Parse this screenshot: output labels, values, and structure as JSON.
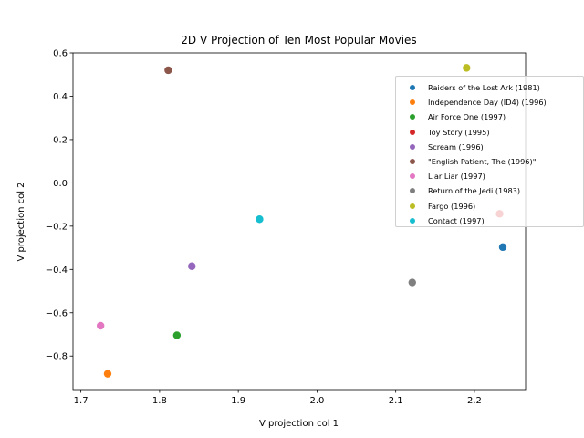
{
  "chart_data": {
    "type": "scatter",
    "title": "2D V Projection of Ten Most Popular Movies",
    "xlabel": "V projection col 1",
    "ylabel": "V projection col 2",
    "xlim": [
      1.69,
      2.265
    ],
    "ylim": [
      -0.955,
      0.6
    ],
    "xticks": [
      "1.7",
      "1.8",
      "1.9",
      "2.0",
      "2.1",
      "2.2"
    ],
    "yticks": [
      "0.6",
      "0.4",
      "0.2",
      "0.0",
      "−0.2",
      "−0.4",
      "−0.6",
      "−0.8"
    ],
    "legend_position": "upper-right",
    "grid": false,
    "series": [
      {
        "name": "Raiders of the Lost Ark (1981)",
        "x": 2.236,
        "y": -0.297,
        "color": "#1f77b4"
      },
      {
        "name": "Independence Day (ID4) (1996)",
        "x": 1.734,
        "y": -0.882,
        "color": "#ff7f0e"
      },
      {
        "name": "Air Force One (1997)",
        "x": 1.822,
        "y": -0.704,
        "color": "#2ca02c"
      },
      {
        "name": "Toy Story (1995)",
        "x": 2.232,
        "y": -0.143,
        "color": "#d62728"
      },
      {
        "name": "Scream (1996)",
        "x": 1.841,
        "y": -0.385,
        "color": "#9467bd"
      },
      {
        "name": "\"English Patient, The (1996)\"",
        "x": 1.811,
        "y": 0.52,
        "color": "#8c564b"
      },
      {
        "name": "Liar Liar (1997)",
        "x": 1.725,
        "y": -0.66,
        "color": "#e377c2"
      },
      {
        "name": "Return of the Jedi (1983)",
        "x": 2.121,
        "y": -0.46,
        "color": "#7f7f7f"
      },
      {
        "name": "Fargo (1996)",
        "x": 2.19,
        "y": 0.531,
        "color": "#bcbd22"
      },
      {
        "name": "Contact (1997)",
        "x": 1.927,
        "y": -0.168,
        "color": "#17becf"
      }
    ]
  }
}
